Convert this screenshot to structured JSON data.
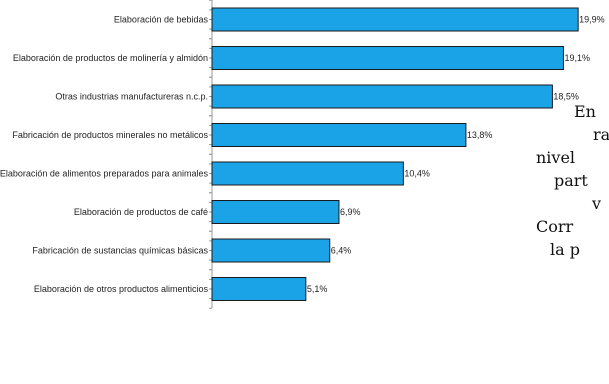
{
  "chart_data": {
    "type": "bar",
    "orientation": "horizontal",
    "title": "",
    "xlabel": "",
    "ylabel": "",
    "categories": [
      "Elaboración de bebidas",
      "Elaboración de productos de molinería y almidón",
      "Otras industrias manufactureras n.c.p.",
      "Fabricación de productos minerales no metálicos",
      "Elaboración de alimentos preparados para animales",
      "Elaboración de productos de café",
      "Fabricación de sustancias químicas básicas",
      "Elaboración de otros productos alimenticios"
    ],
    "values": [
      19.9,
      19.1,
      18.5,
      13.8,
      10.4,
      6.9,
      6.4,
      5.1
    ],
    "value_labels": [
      "19,9%",
      "19,1%",
      "18,5%",
      "13,8%",
      "10,4%",
      "6,9%",
      "6,4%",
      "5,1%"
    ],
    "xlim": [
      0,
      20
    ],
    "grid": false,
    "bar_color": "#1aa3e6"
  },
  "side_text_lines": [
    "En",
    "ra",
    "nivel",
    "part",
    "v",
    "Corr",
    "la p"
  ]
}
